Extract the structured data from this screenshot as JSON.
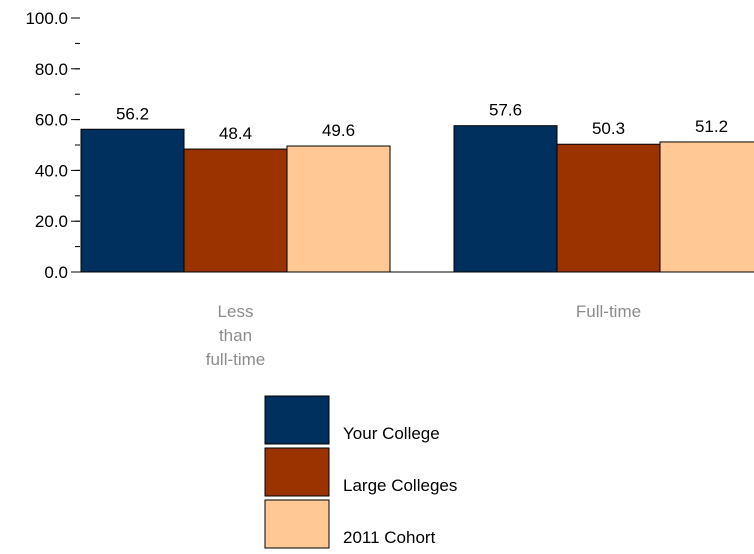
{
  "chart_data": {
    "type": "bar",
    "categories": [
      [
        "Less",
        "than",
        "full-time"
      ],
      [
        "Full-time"
      ]
    ],
    "series": [
      {
        "name": "Your College",
        "values": [
          56.2,
          57.6
        ],
        "labels": [
          "56.2",
          "57.6"
        ],
        "color": "#00305e"
      },
      {
        "name": "Large Colleges",
        "values": [
          48.4,
          50.3
        ],
        "labels": [
          "48.4",
          "50.3"
        ],
        "color": "#9a3300"
      },
      {
        "name": "2011 Cohort",
        "values": [
          49.6,
          51.2
        ],
        "labels": [
          "49.6",
          "51.2"
        ],
        "color": "#ffc895"
      }
    ],
    "ylim": [
      0,
      100
    ],
    "y_ticks": [
      "0.0",
      "20.0",
      "40.0",
      "60.0",
      "80.0",
      "100.0"
    ],
    "y_tick_values": [
      0,
      20,
      40,
      60,
      80,
      100
    ],
    "y_minor_step": 10,
    "grid": false,
    "legend_position": "bottom"
  }
}
